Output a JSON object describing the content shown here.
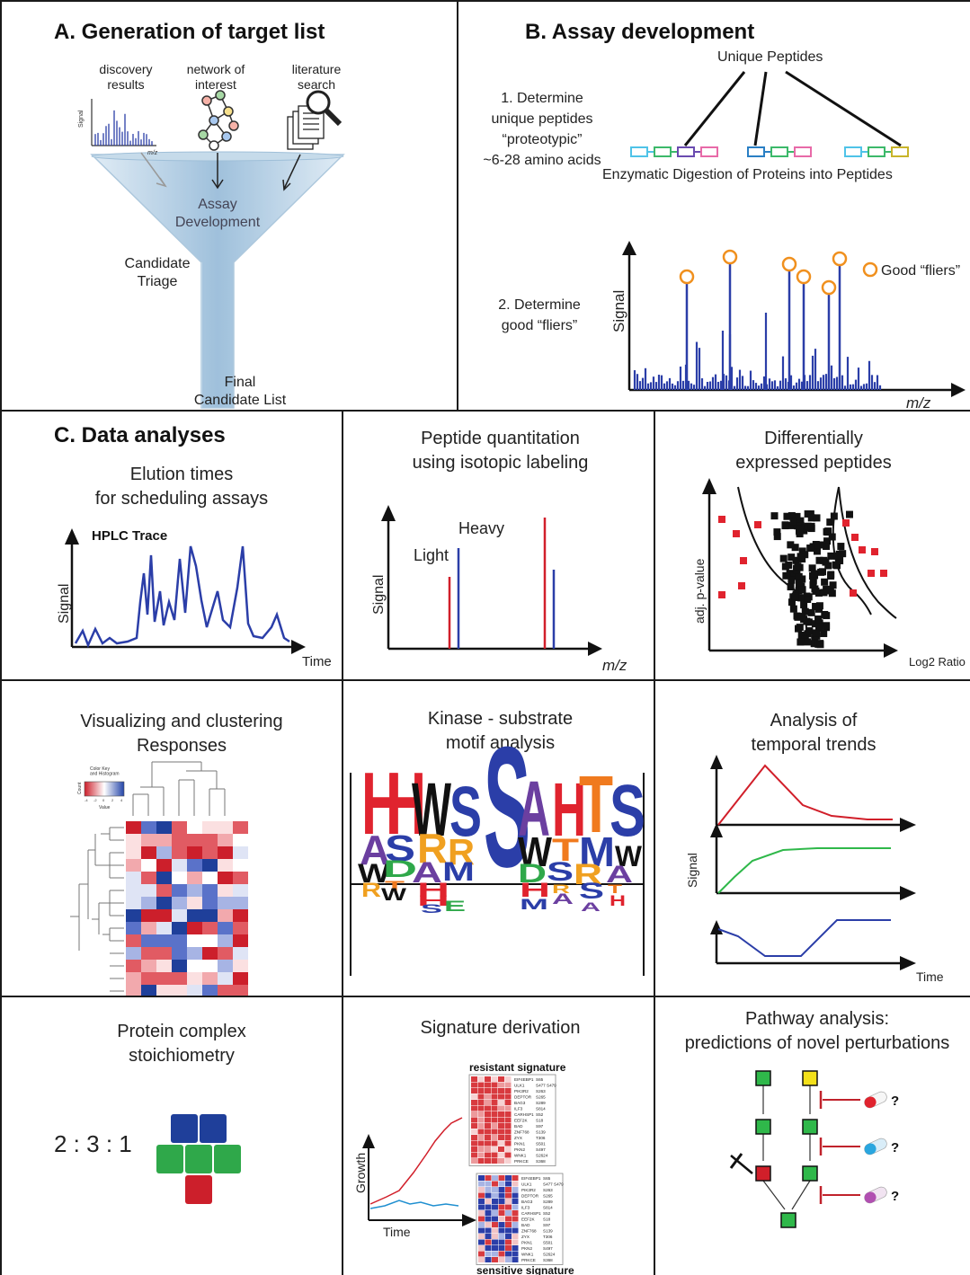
{
  "panelA": {
    "title": "A. Generation of target list",
    "sources": [
      "discovery\nresults",
      "network of\ninterest",
      "literature\nsearch"
    ],
    "spectrum_y_axis": "Signal",
    "spectrum_x_axis": "m/z",
    "funnel_center": "Assay\nDevelopment",
    "triage": "Candidate\nTriage",
    "final": "Final\nCandidate List"
  },
  "panelB": {
    "title": "B. Assay development",
    "unique_peptides": "Unique Peptides",
    "step1": "1. Determine\nunique peptides\n“proteotypic”\n~6-28 amino acids",
    "digestion": "Enzymatic Digestion of Proteins into Peptides",
    "step2": "2. Determine\ngood “fliers”",
    "legend": "Good “fliers”",
    "ylabel": "Signal",
    "xlabel": "m/z"
  },
  "elution": {
    "section_title": "C. Data analyses",
    "title": "Elution times\nfor scheduling assays",
    "trace_label": "HPLC Trace",
    "ylabel": "Signal",
    "xlabel": "Time"
  },
  "quant": {
    "title": "Peptide quantitation\nusing isotopic labeling",
    "heavy": "Heavy",
    "light": "Light",
    "ylabel": "Signal",
    "xlabel": "m/z"
  },
  "volcano": {
    "title": "Differentially\nexpressed peptides",
    "ylabel": "adj. p-value",
    "xlabel": "Log2 Ratio"
  },
  "cluster": {
    "title": "Visualizing and clustering\nResponses",
    "key_title": "Color Key\nand Histogram",
    "key_ylabel": "Count",
    "key_xlabel": "Value",
    "key_ticks": [
      "-4",
      "-2",
      "0",
      "2",
      "4"
    ]
  },
  "motif": {
    "title": "Kinase - substrate\nmotif analysis"
  },
  "temporal": {
    "title": "Analysis of\ntemporal trends",
    "ylabel": "Signal",
    "xlabel": "Time"
  },
  "stoich": {
    "title": "Protein complex\nstoichiometry",
    "ratio": "2 : 3 : 1",
    "colors": {
      "blue": "#1f3f9a",
      "green": "#2fa84a",
      "red": "#cc1f2b"
    }
  },
  "signature": {
    "title": "Signature derivation",
    "resistant": "resistant signature",
    "sensitive": "sensitive signature",
    "ylabel": "Growth",
    "xlabel": "Time",
    "genes": [
      "EIF4EBP1",
      "ULK1",
      "PIK3R2",
      "DEPTOR",
      "BAG3",
      "ILF3",
      "CARHSP1",
      "EEF2K",
      "BAD",
      "ZNF768",
      "ZYX",
      "PKN1",
      "PKN2",
      "WNK1",
      "PRKCE"
    ],
    "sites": [
      "S65",
      "S477 S479",
      "S263",
      "S265",
      "S289",
      "S814",
      "S52",
      "S18",
      "S97",
      "S139",
      "T306",
      "S501",
      "S497",
      "S2624",
      "S368"
    ]
  },
  "pathway": {
    "title": "Pathway analysis:\npredictions of novel perturbations",
    "question": "?"
  },
  "colors": {
    "series_blue": "#2b3ea8",
    "series_red": "#d11f2a",
    "series_green": "#2fb84a",
    "flier_orange": "#f0901e"
  }
}
